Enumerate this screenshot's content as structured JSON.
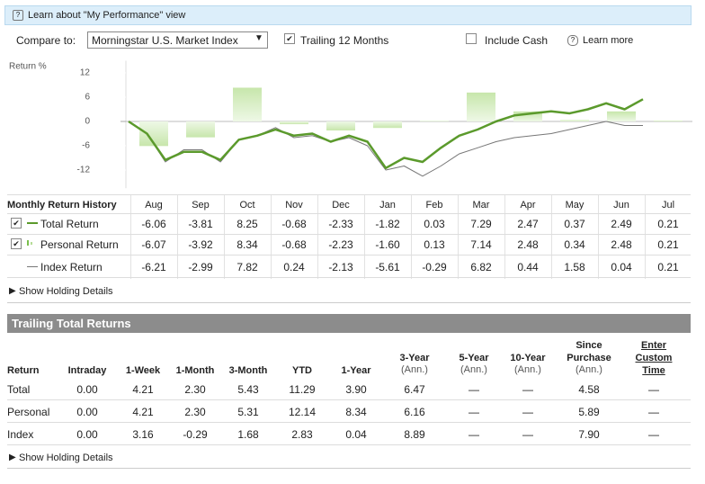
{
  "header": {
    "learn": "Learn about \"My Performance\" view"
  },
  "controls": {
    "compare_label": "Compare to:",
    "compare_value": "Morningstar U.S. Market Index",
    "trailing": "Trailing 12 Months",
    "include_cash": "Include Cash",
    "learn_more": "Learn more"
  },
  "chart_data": {
    "type": "combo",
    "y_label": "Return %",
    "ylim": [
      -16.5,
      15
    ],
    "yticks": [
      12,
      6,
      0,
      -6,
      -12
    ],
    "series": [
      {
        "name": "Total Return",
        "color": "#5b9a2c",
        "values": [
          0,
          -3,
          -9.5,
          -7.5,
          -7.5,
          -9.5,
          -4.5,
          -3.5,
          -2,
          -3.5,
          -3,
          -5,
          -3.5,
          -5,
          -11.5,
          -9,
          -10,
          -6.5,
          -3.5,
          -2,
          0,
          1.5,
          2,
          2.5,
          2,
          3,
          4.5,
          3,
          5.5
        ]
      },
      {
        "name": "Index Return",
        "color": "#777777",
        "values": [
          0,
          -3,
          -10,
          -7,
          -7,
          -10,
          -4.5,
          -3.5,
          -1.5,
          -4,
          -3.5,
          -5,
          -4,
          -6,
          -12,
          -11,
          -13.5,
          -11,
          -8,
          -6.5,
          -5,
          -4,
          -3.5,
          -3,
          -2,
          -1,
          0,
          -1,
          -1
        ]
      }
    ]
  },
  "monthly": {
    "title": "Monthly Return History",
    "months": [
      "Aug",
      "Sep",
      "Oct",
      "Nov",
      "Dec",
      "Jan",
      "Feb",
      "Mar",
      "Apr",
      "May",
      "Jun",
      "Jul"
    ],
    "rows": [
      {
        "name": "Total Return",
        "values": [
          -6.06,
          -3.81,
          8.25,
          -0.68,
          -2.33,
          -1.82,
          0.03,
          7.29,
          2.47,
          0.37,
          2.49,
          0.21
        ]
      },
      {
        "name": "Personal Return",
        "values": [
          -6.07,
          -3.92,
          8.34,
          -0.68,
          -2.23,
          -1.6,
          0.13,
          7.14,
          2.48,
          0.34,
          2.48,
          0.21
        ],
        "value_labels": [
          "-6.07",
          "-3.92",
          "8.34",
          "-0.68",
          "-2.23",
          "-1.60",
          "0.13",
          "7.14",
          "2.48",
          "0.34",
          "2.48",
          "0.21"
        ]
      },
      {
        "name": "Index Return",
        "values": [
          -6.21,
          -2.99,
          7.82,
          0.24,
          -2.13,
          -5.61,
          -0.29,
          6.82,
          0.44,
          1.58,
          0.04,
          0.21
        ]
      }
    ],
    "details": "Show Holding Details"
  },
  "trailing": {
    "title": "Trailing Total Returns",
    "headers": [
      {
        "label": "Return"
      },
      {
        "label": "Intraday"
      },
      {
        "label": "1-Week"
      },
      {
        "label": "1-Month"
      },
      {
        "label": "3-Month"
      },
      {
        "label": "YTD"
      },
      {
        "label": "1-Year"
      },
      {
        "label": "3-Year",
        "sub": "(Ann.)"
      },
      {
        "label": "5-Year",
        "sub": "(Ann.)"
      },
      {
        "label": "10-Year",
        "sub": "(Ann.)"
      },
      {
        "label": "Since Purchase",
        "sub": "(Ann.)"
      },
      {
        "label": "Enter Custom Time"
      }
    ],
    "rows": [
      [
        "Total",
        "0.00",
        "4.21",
        "2.30",
        "5.43",
        "11.29",
        "3.90",
        "6.47",
        "—",
        "—",
        "4.58",
        "—"
      ],
      [
        "Personal",
        "0.00",
        "4.21",
        "2.30",
        "5.31",
        "12.14",
        "8.34",
        "6.16",
        "—",
        "—",
        "5.89",
        "—"
      ],
      [
        "Index",
        "0.00",
        "3.16",
        "-0.29",
        "1.68",
        "2.83",
        "0.04",
        "8.89",
        "—",
        "—",
        "7.90",
        "—"
      ]
    ],
    "details": "Show Holding Details"
  }
}
